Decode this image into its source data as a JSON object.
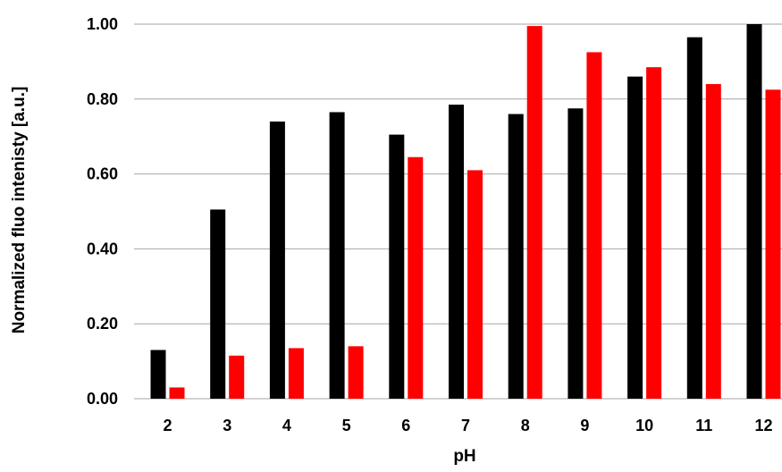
{
  "chart_data": {
    "type": "bar",
    "title": "",
    "xlabel": "pH",
    "ylabel": "Normalized fluo intenisty [a.u.]",
    "categories": [
      "2",
      "3",
      "4",
      "5",
      "6",
      "7",
      "8",
      "9",
      "10",
      "11",
      "12"
    ],
    "series": [
      {
        "color": "#000000",
        "values": [
          0.13,
          0.505,
          0.74,
          0.765,
          0.705,
          0.785,
          0.76,
          0.775,
          0.86,
          0.965,
          1.0
        ]
      },
      {
        "color": "#ff0000",
        "values": [
          0.03,
          0.115,
          0.135,
          0.14,
          0.645,
          0.61,
          0.995,
          0.925,
          0.885,
          0.84,
          0.825
        ]
      }
    ],
    "ylim": [
      0,
      1.0
    ],
    "yticks": [
      "0.00",
      "0.20",
      "0.40",
      "0.60",
      "0.80",
      "1.00"
    ],
    "grid": true,
    "legend": "none"
  }
}
